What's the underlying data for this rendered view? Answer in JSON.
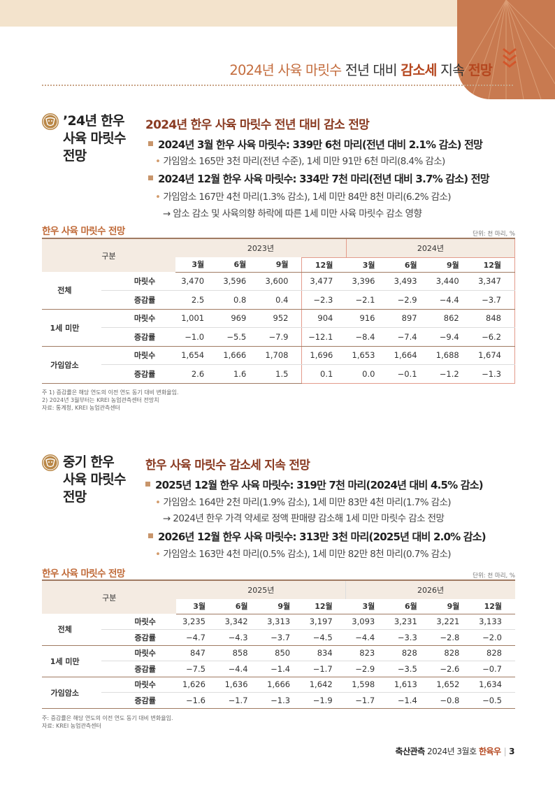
{
  "header": {
    "title_part1": "2024년 사육 마릿수",
    "title_part2": " 전년 대비 ",
    "title_part3": "감소세",
    "title_part4": " 지속 ",
    "title_part5": "전망"
  },
  "colors": {
    "accent": "#c87a50",
    "dark_accent": "#8a3b22",
    "highlight": "#b5471f",
    "table_header_bg": "#f4ebe2"
  },
  "section1": {
    "heading_lines": [
      "’24년 한우",
      "사육 마릿수",
      "전망"
    ],
    "subtitle": "2024년 한우 사육 마릿수 전년 대비 감소 전망",
    "bullet1": "2024년 3월 한우 사육 마릿수: 339만 6천 마리(전년 대비 2.1% 감소) 전망",
    "bullet1_sub": "가임암소 165만 3천 마리(전년 수준), 1세 미만 91만 6천 마리(8.4% 감소)",
    "bullet2": "2024년 12월 한우 사육 마릿수: 334만 7천 마리(전년 대비 3.7% 감소) 전망",
    "bullet2_sub": "가임암소 167만 4천 마리(1.3% 감소), 1세 미만 84만 8천 마리(6.2% 감소)",
    "bullet2_arrow": "→ 암소 감소 및 사육의향 하락에 따른 1세 미만 사육 마릿수 감소 영향",
    "table_title": "한우 사육 마릿수 전망",
    "unit": "단위: 천 마리, %",
    "table": {
      "gubun": "구분",
      "years": [
        "2023년",
        "2024년"
      ],
      "months": [
        "3월",
        "6월",
        "9월",
        "12월",
        "3월",
        "6월",
        "9월",
        "12월"
      ],
      "groups": [
        {
          "name": "전체",
          "rows": [
            {
              "label": "마릿수",
              "values": [
                "3,470",
                "3,596",
                "3,600",
                "3,477",
                "3,396",
                "3,493",
                "3,440",
                "3,347"
              ]
            },
            {
              "label": "증감률",
              "values": [
                "2.5",
                "0.8",
                "0.4",
                "−2.3",
                "−2.1",
                "−2.9",
                "−4.4",
                "−3.7"
              ]
            }
          ]
        },
        {
          "name": "1세 미만",
          "rows": [
            {
              "label": "마릿수",
              "values": [
                "1,001",
                "969",
                "952",
                "904",
                "916",
                "897",
                "862",
                "848"
              ]
            },
            {
              "label": "증감률",
              "values": [
                "−1.0",
                "−5.5",
                "−7.9",
                "−12.1",
                "−8.4",
                "−7.4",
                "−9.4",
                "−6.2"
              ]
            }
          ]
        },
        {
          "name": "가임암소",
          "rows": [
            {
              "label": "마릿수",
              "values": [
                "1,654",
                "1,666",
                "1,708",
                "1,696",
                "1,653",
                "1,664",
                "1,688",
                "1,674"
              ]
            },
            {
              "label": "증감률",
              "values": [
                "2.6",
                "1.6",
                "1.5",
                "0.1",
                "0.0",
                "−0.1",
                "−1.2",
                "−1.3"
              ]
            }
          ]
        }
      ]
    },
    "notes": [
      "주   1) 증감률은 해당 연도의 이전 연도 동기 대비 변화율임.",
      "       2) 2024년 3월부터는 KREI 농업관측센터 전망치",
      "자료: 통계청, KREI 농업관측센터"
    ]
  },
  "section2": {
    "heading_lines": [
      "중기 한우",
      "사육 마릿수",
      "전망"
    ],
    "subtitle": "한우 사육 마릿수 감소세 지속 전망",
    "bullet1": "2025년 12월 한우 사육 마릿수: 319만 7천 마리(2024년 대비 4.5% 감소)",
    "bullet1_sub": "가임암소 164만 2천 마리(1.9% 감소), 1세 미만 83만 4천 마리(1.7% 감소)",
    "bullet1_arrow": "→ 2024년 한우 가격 약세로 정액 판매량 감소해 1세 미만 마릿수 감소 전망",
    "bullet2": "2026년 12월 한우 사육 마릿수: 313만 3천 마리(2025년 대비 2.0% 감소)",
    "bullet2_sub": "가임암소 163만 4천 마리(0.5% 감소), 1세 미만 82만 8천 마리(0.7% 감소)",
    "table_title": "한우 사육 마릿수 전망",
    "unit": "단위: 천 마리, %",
    "table": {
      "gubun": "구분",
      "years": [
        "2025년",
        "2026년"
      ],
      "months": [
        "3월",
        "6월",
        "9월",
        "12월",
        "3월",
        "6월",
        "9월",
        "12월"
      ],
      "groups": [
        {
          "name": "전체",
          "rows": [
            {
              "label": "마릿수",
              "values": [
                "3,235",
                "3,342",
                "3,313",
                "3,197",
                "3,093",
                "3,231",
                "3,221",
                "3,133"
              ]
            },
            {
              "label": "증감률",
              "values": [
                "−4.7",
                "−4.3",
                "−3.7",
                "−4.5",
                "−4.4",
                "−3.3",
                "−2.8",
                "−2.0"
              ]
            }
          ]
        },
        {
          "name": "1세 미만",
          "rows": [
            {
              "label": "마릿수",
              "values": [
                "847",
                "858",
                "850",
                "834",
                "823",
                "828",
                "828",
                "828"
              ]
            },
            {
              "label": "증감률",
              "values": [
                "−7.5",
                "−4.4",
                "−1.4",
                "−1.7",
                "−2.9",
                "−3.5",
                "−2.6",
                "−0.7"
              ]
            }
          ]
        },
        {
          "name": "가임암소",
          "rows": [
            {
              "label": "마릿수",
              "values": [
                "1,626",
                "1,636",
                "1,666",
                "1,642",
                "1,598",
                "1,613",
                "1,652",
                "1,634"
              ]
            },
            {
              "label": "증감률",
              "values": [
                "−1.6",
                "−1.7",
                "−1.3",
                "−1.9",
                "−1.7",
                "−1.4",
                "−0.8",
                "−0.5"
              ]
            }
          ]
        }
      ]
    },
    "notes": [
      "주: 증감률은 해당 연도의 이전 연도 동기 대비 변화율임.",
      "자료: KREI 농업관측센터"
    ]
  },
  "footer": {
    "publication": "축산관측",
    "issue": " 2024년 3월호 ",
    "topic": "한육우",
    "page": "3"
  }
}
